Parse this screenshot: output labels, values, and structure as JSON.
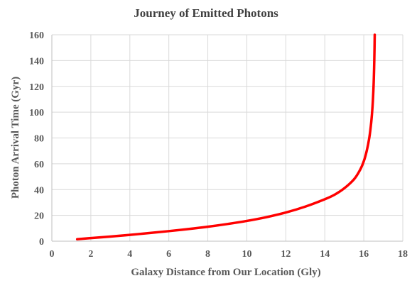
{
  "chart_data": {
    "type": "line",
    "title": "Journey of Emitted Photons",
    "xlabel": "Galaxy Distance from Our Location (Gly)",
    "ylabel": "Photon Arrival Time (Gyr)",
    "xlim": [
      0,
      18
    ],
    "ylim": [
      0,
      160
    ],
    "x_ticks": [
      "0",
      "2",
      "4",
      "6",
      "8",
      "10",
      "12",
      "14",
      "16",
      "18"
    ],
    "y_ticks": [
      "0",
      "20",
      "40",
      "60",
      "80",
      "100",
      "120",
      "140",
      "160"
    ],
    "grid": true,
    "legend": "none",
    "series": [
      {
        "color": "#ff0000",
        "points": [
          [
            1.3,
            1.5
          ],
          [
            2,
            2.4
          ],
          [
            3,
            3.6
          ],
          [
            4,
            4.9
          ],
          [
            5,
            6.3
          ],
          [
            6,
            7.8
          ],
          [
            7,
            9.4
          ],
          [
            8,
            11.2
          ],
          [
            9,
            13.3
          ],
          [
            10,
            15.7
          ],
          [
            11,
            18.6
          ],
          [
            12,
            22.2
          ],
          [
            13,
            26.8
          ],
          [
            14,
            32.5
          ],
          [
            14.5,
            36
          ],
          [
            15,
            41
          ],
          [
            15.5,
            48
          ],
          [
            15.8,
            55
          ],
          [
            16.0,
            62
          ],
          [
            16.15,
            70
          ],
          [
            16.28,
            80
          ],
          [
            16.38,
            92
          ],
          [
            16.45,
            105
          ],
          [
            16.5,
            120
          ],
          [
            16.53,
            135
          ],
          [
            16.55,
            150
          ],
          [
            16.56,
            160
          ]
        ]
      }
    ]
  }
}
